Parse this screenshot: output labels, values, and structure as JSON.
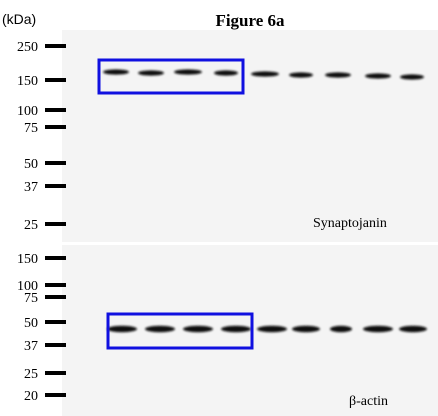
{
  "title": "Figure 6a",
  "unit": "(kDa)",
  "panels": [
    {
      "label": "Synaptojanin",
      "markers": [
        "250",
        "150",
        "100",
        "75",
        "50",
        "37",
        "25"
      ]
    },
    {
      "label": "β-actin",
      "markers": [
        "150",
        "100",
        "75",
        "50",
        "37",
        "25",
        "20"
      ]
    }
  ]
}
